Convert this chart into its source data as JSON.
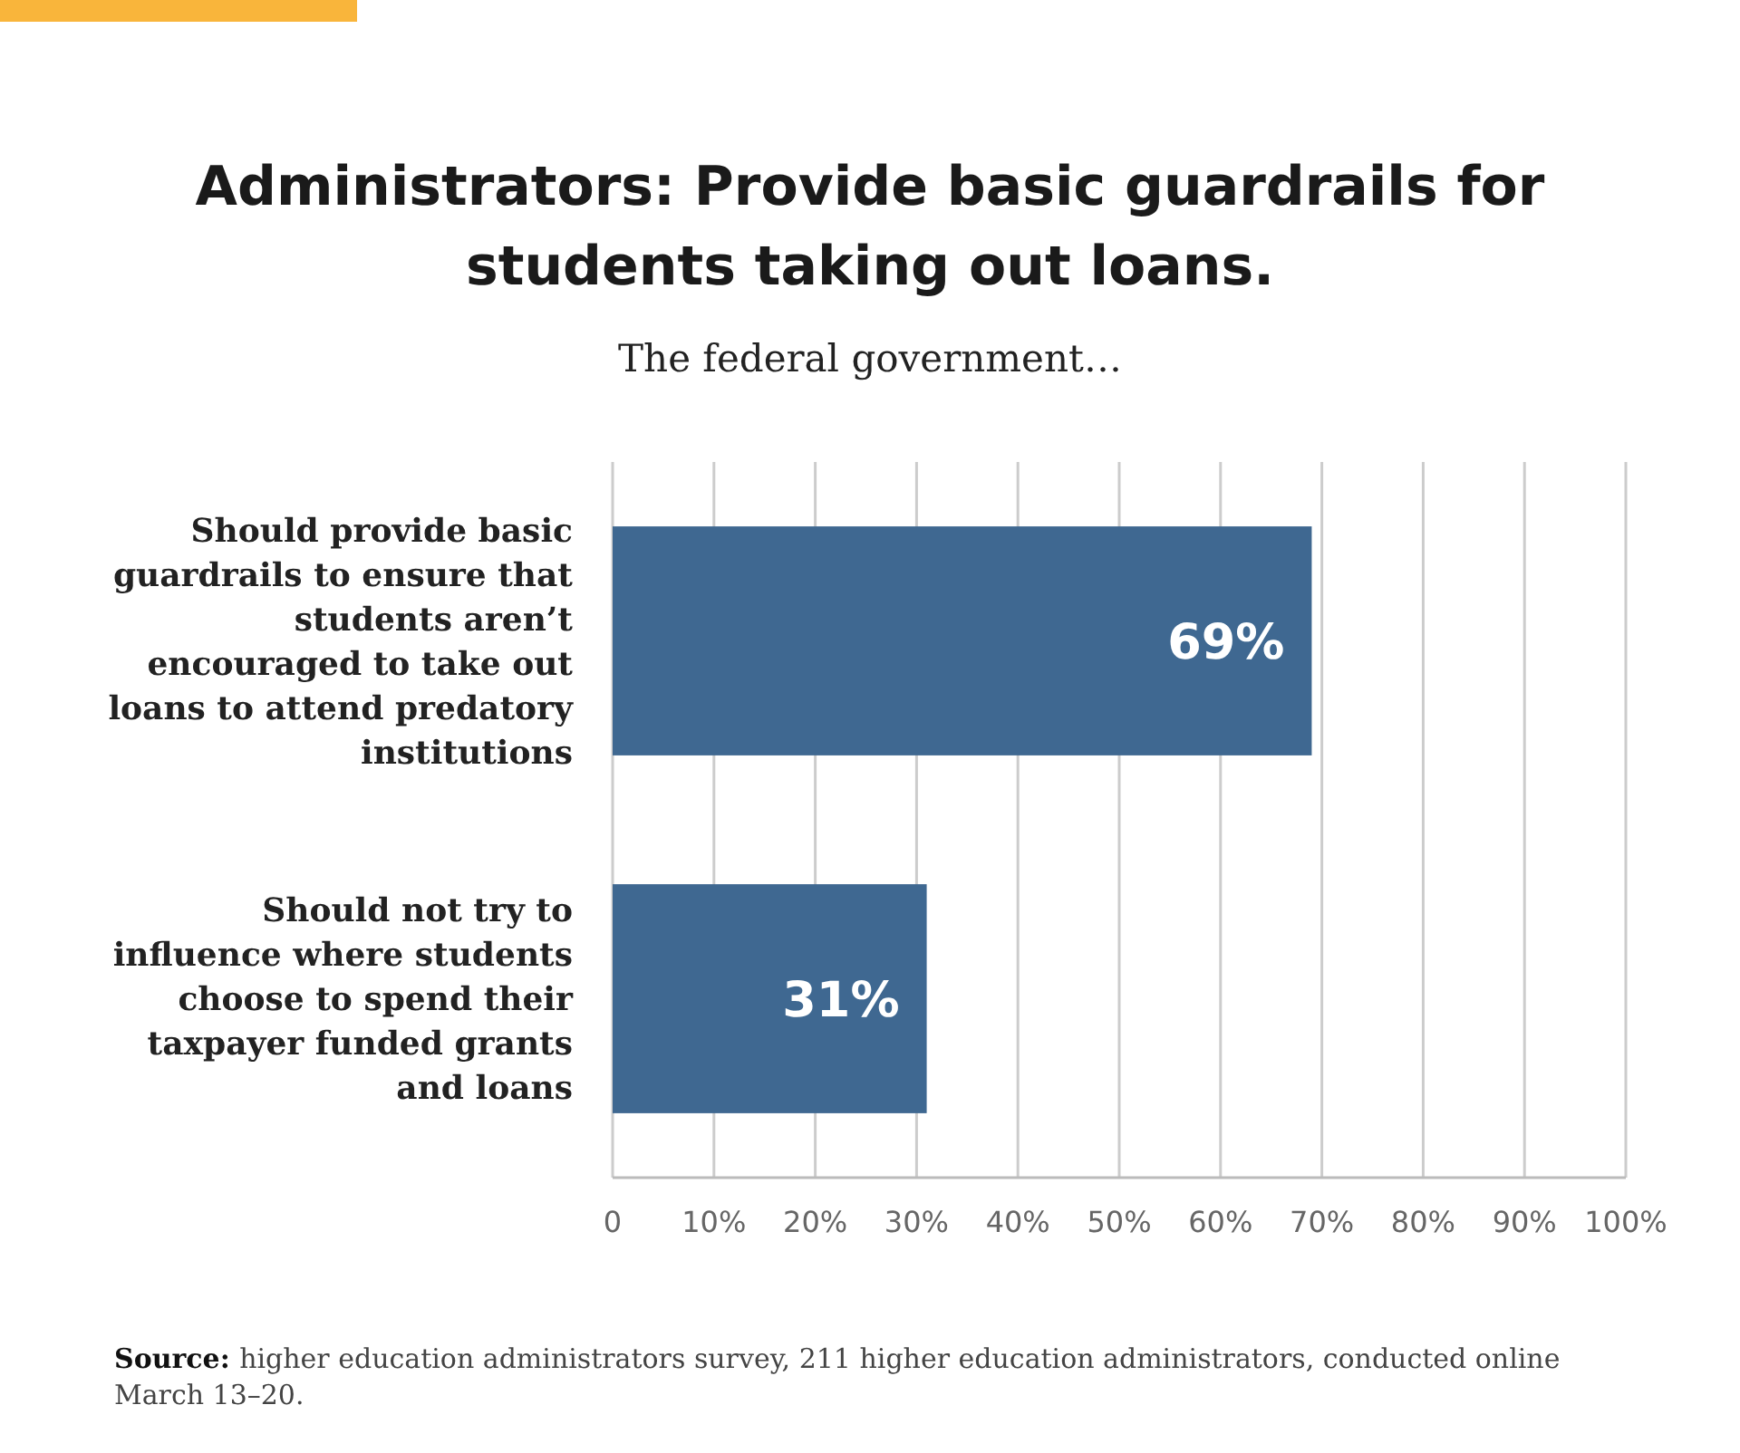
{
  "chart_data": {
    "type": "bar",
    "orientation": "horizontal",
    "title": "Administrators: Provide basic guardrails for students taking out loans.",
    "subtitle": "The federal government…",
    "categories": [
      "Should provide basic guardrails to ensure that students aren’t encouraged to take out loans to attend predatory institutions",
      "Should not try to influence where students choose to spend their taxpayer funded grants and loans"
    ],
    "values": [
      69,
      31
    ],
    "value_labels": [
      "69%",
      "31%"
    ],
    "color": "#3f6891",
    "xlim": [
      0,
      100
    ],
    "xticks": [
      0,
      {
        "value": 10,
        "label": "10%"
      },
      {
        "value": 20,
        "label": "20%"
      },
      {
        "value": 30,
        "label": "30%"
      },
      {
        "value": 40,
        "label": "40%"
      },
      {
        "value": 50,
        "label": "50%"
      },
      {
        "value": 60,
        "label": "60%"
      },
      {
        "value": 70,
        "label": "70%"
      },
      {
        "value": 80,
        "label": "80%"
      },
      {
        "value": 90,
        "label": "90%"
      },
      {
        "value": 100,
        "label": "100%"
      }
    ],
    "grid": "x",
    "annotations": [
      "Source: higher education administrators survey, 211 higher education administrators, conducted online March 13–20."
    ]
  }
}
